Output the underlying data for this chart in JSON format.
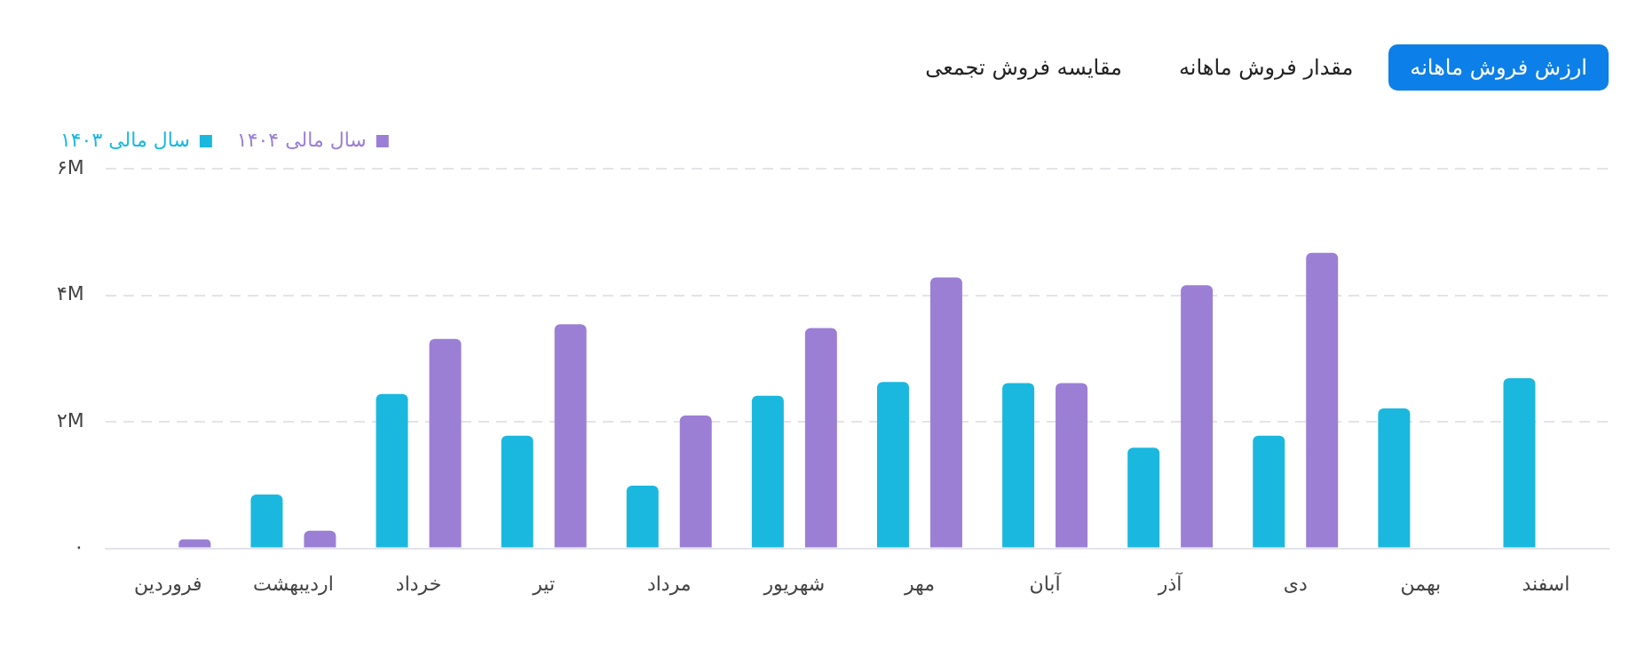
{
  "chart_data": {
    "type": "bar",
    "annotations": [
      "ارزش فروش ماهانه",
      "مقدار فروش ماهانه",
      "مقایسه فروش تجمعی"
    ],
    "categories": [
      "فروردین",
      "اردیبهشت",
      "خرداد",
      "تیر",
      "مرداد",
      "شهریور",
      "مهر",
      "آبان",
      "آذر",
      "دی",
      "بهمن",
      "اسفند"
    ],
    "series": [
      {
        "name": "سال مالی ۱۴۰۳",
        "color": "#1ab8de",
        "values": [
          null,
          0.85,
          2.44,
          1.78,
          0.99,
          2.41,
          2.63,
          2.61,
          1.59,
          1.78,
          2.21,
          2.69
        ]
      },
      {
        "name": "سال مالی ۱۴۰۴",
        "color": "#9b7fd4",
        "values": [
          0.14,
          0.28,
          3.31,
          3.54,
          2.1,
          3.48,
          4.28,
          2.61,
          4.16,
          4.67,
          null,
          null
        ]
      }
    ],
    "ylim": [
      0,
      6
    ],
    "yticks": [
      {
        "value": 0,
        "label": "۰"
      },
      {
        "value": 2,
        "label": "۲M"
      },
      {
        "value": 4,
        "label": "۴M"
      },
      {
        "value": 6,
        "label": "۶M"
      }
    ],
    "grid": "y",
    "legend": "top left"
  }
}
